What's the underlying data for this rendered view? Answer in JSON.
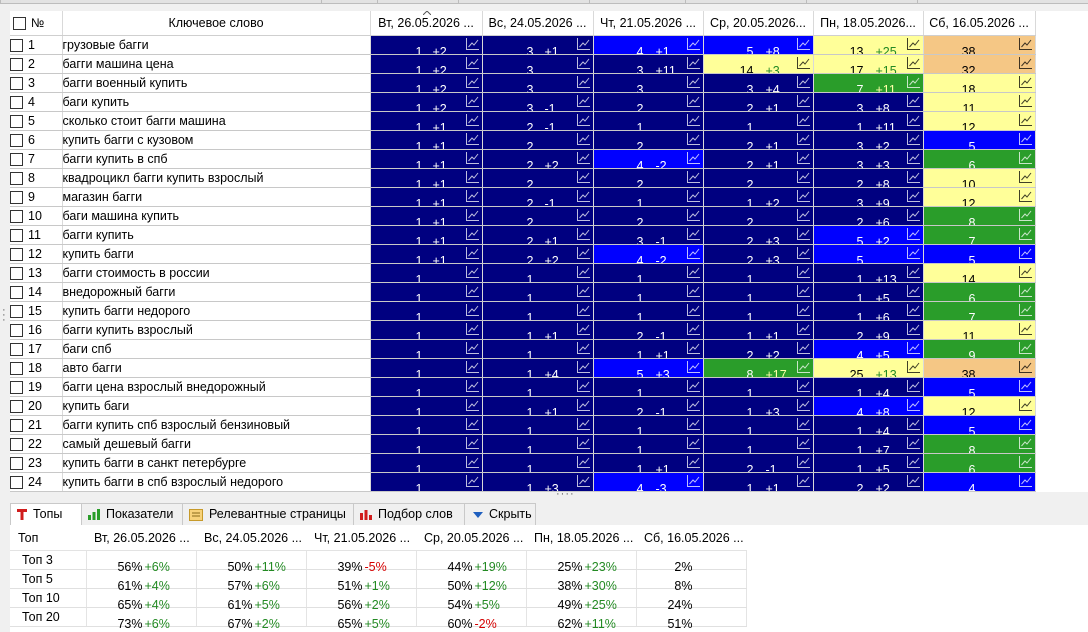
{
  "grid": {
    "headers": {
      "no": "№",
      "keyword": "Ключевое слово",
      "dates": [
        "Вт, 26.05.2026 ...",
        "Вс, 24.05.2026 ...",
        "Чт, 21.05.2026 ...",
        "Ср, 20.05.2026...",
        "Пн, 18.05.2026...",
        "Сб, 16.05.2026 ..."
      ]
    },
    "rows": [
      {
        "n": "1",
        "kw": "грузовые багги",
        "cells": [
          {
            "v": "1",
            "d": "+2",
            "c": "navy"
          },
          {
            "v": "3",
            "d": "+1",
            "c": "navy"
          },
          {
            "v": "4",
            "d": "+1",
            "c": "blue"
          },
          {
            "v": "5",
            "d": "+8",
            "c": "blue"
          },
          {
            "v": "13",
            "d": "+25",
            "c": "yellow"
          },
          {
            "v": "38",
            "d": "",
            "c": "orange"
          }
        ]
      },
      {
        "n": "2",
        "kw": "багги машина цена",
        "cells": [
          {
            "v": "1",
            "d": "+2",
            "c": "navy"
          },
          {
            "v": "3",
            "d": "",
            "c": "navy"
          },
          {
            "v": "3",
            "d": "+11",
            "c": "navy"
          },
          {
            "v": "14",
            "d": "+3",
            "c": "yellow"
          },
          {
            "v": "17",
            "d": "+15",
            "c": "yellow"
          },
          {
            "v": "32",
            "d": "",
            "c": "orange"
          }
        ]
      },
      {
        "n": "3",
        "kw": "багги военный купить",
        "cells": [
          {
            "v": "1",
            "d": "+2",
            "c": "navy"
          },
          {
            "v": "3",
            "d": "",
            "c": "navy"
          },
          {
            "v": "3",
            "d": "",
            "c": "navy"
          },
          {
            "v": "3",
            "d": "+4",
            "c": "navy"
          },
          {
            "v": "7",
            "d": "+11",
            "c": "green"
          },
          {
            "v": "18",
            "d": "",
            "c": "yellow"
          }
        ]
      },
      {
        "n": "4",
        "kw": "баги купить",
        "cells": [
          {
            "v": "1",
            "d": "+2",
            "c": "navy"
          },
          {
            "v": "3",
            "d": "-1",
            "c": "navy"
          },
          {
            "v": "2",
            "d": "",
            "c": "navy"
          },
          {
            "v": "2",
            "d": "+1",
            "c": "navy"
          },
          {
            "v": "3",
            "d": "+8",
            "c": "navy"
          },
          {
            "v": "11",
            "d": "",
            "c": "yellow"
          }
        ]
      },
      {
        "n": "5",
        "kw": "сколько стоит багги машина",
        "cells": [
          {
            "v": "1",
            "d": "+1",
            "c": "navy"
          },
          {
            "v": "2",
            "d": "-1",
            "c": "navy"
          },
          {
            "v": "1",
            "d": "",
            "c": "navy"
          },
          {
            "v": "1",
            "d": "",
            "c": "navy"
          },
          {
            "v": "1",
            "d": "+11",
            "c": "navy"
          },
          {
            "v": "12",
            "d": "",
            "c": "yellow"
          }
        ]
      },
      {
        "n": "6",
        "kw": "купить багги с кузовом",
        "cells": [
          {
            "v": "1",
            "d": "+1",
            "c": "navy"
          },
          {
            "v": "2",
            "d": "",
            "c": "navy"
          },
          {
            "v": "2",
            "d": "",
            "c": "navy"
          },
          {
            "v": "2",
            "d": "+1",
            "c": "navy"
          },
          {
            "v": "3",
            "d": "+2",
            "c": "navy"
          },
          {
            "v": "5",
            "d": "",
            "c": "blue"
          }
        ]
      },
      {
        "n": "7",
        "kw": "багги купить в спб",
        "cells": [
          {
            "v": "1",
            "d": "+1",
            "c": "navy"
          },
          {
            "v": "2",
            "d": "+2",
            "c": "navy"
          },
          {
            "v": "4",
            "d": "-2",
            "c": "blue"
          },
          {
            "v": "2",
            "d": "+1",
            "c": "navy"
          },
          {
            "v": "3",
            "d": "+3",
            "c": "navy"
          },
          {
            "v": "6",
            "d": "",
            "c": "green"
          }
        ]
      },
      {
        "n": "8",
        "kw": "квадроцикл багги купить взрослый",
        "cells": [
          {
            "v": "1",
            "d": "+1",
            "c": "navy"
          },
          {
            "v": "2",
            "d": "",
            "c": "navy"
          },
          {
            "v": "2",
            "d": "",
            "c": "navy"
          },
          {
            "v": "2",
            "d": "",
            "c": "navy"
          },
          {
            "v": "2",
            "d": "+8",
            "c": "navy"
          },
          {
            "v": "10",
            "d": "",
            "c": "yellow"
          }
        ]
      },
      {
        "n": "9",
        "kw": "магазин багги",
        "cells": [
          {
            "v": "1",
            "d": "+1",
            "c": "navy"
          },
          {
            "v": "2",
            "d": "-1",
            "c": "navy"
          },
          {
            "v": "1",
            "d": "",
            "c": "navy"
          },
          {
            "v": "1",
            "d": "+2",
            "c": "navy"
          },
          {
            "v": "3",
            "d": "+9",
            "c": "navy"
          },
          {
            "v": "12",
            "d": "",
            "c": "yellow"
          }
        ]
      },
      {
        "n": "10",
        "kw": "баги машина купить",
        "cells": [
          {
            "v": "1",
            "d": "+1",
            "c": "navy"
          },
          {
            "v": "2",
            "d": "",
            "c": "navy"
          },
          {
            "v": "2",
            "d": "",
            "c": "navy"
          },
          {
            "v": "2",
            "d": "",
            "c": "navy"
          },
          {
            "v": "2",
            "d": "+6",
            "c": "navy"
          },
          {
            "v": "8",
            "d": "",
            "c": "green"
          }
        ]
      },
      {
        "n": "11",
        "kw": "багги купить",
        "cells": [
          {
            "v": "1",
            "d": "+1",
            "c": "navy"
          },
          {
            "v": "2",
            "d": "+1",
            "c": "navy"
          },
          {
            "v": "3",
            "d": "-1",
            "c": "navy"
          },
          {
            "v": "2",
            "d": "+3",
            "c": "navy"
          },
          {
            "v": "5",
            "d": "+2",
            "c": "blue"
          },
          {
            "v": "7",
            "d": "",
            "c": "green"
          }
        ]
      },
      {
        "n": "12",
        "kw": "купить багги",
        "cells": [
          {
            "v": "1",
            "d": "+1",
            "c": "navy"
          },
          {
            "v": "2",
            "d": "+2",
            "c": "navy"
          },
          {
            "v": "4",
            "d": "-2",
            "c": "blue"
          },
          {
            "v": "2",
            "d": "+3",
            "c": "navy"
          },
          {
            "v": "5",
            "d": "",
            "c": "blue"
          },
          {
            "v": "5",
            "d": "",
            "c": "blue"
          }
        ]
      },
      {
        "n": "13",
        "kw": "багги стоимость в россии",
        "cells": [
          {
            "v": "1",
            "d": "",
            "c": "navy"
          },
          {
            "v": "1",
            "d": "",
            "c": "navy"
          },
          {
            "v": "1",
            "d": "",
            "c": "navy"
          },
          {
            "v": "1",
            "d": "",
            "c": "navy"
          },
          {
            "v": "1",
            "d": "+13",
            "c": "navy"
          },
          {
            "v": "14",
            "d": "",
            "c": "yellow"
          }
        ]
      },
      {
        "n": "14",
        "kw": "внедорожный багги",
        "cells": [
          {
            "v": "1",
            "d": "",
            "c": "navy"
          },
          {
            "v": "1",
            "d": "",
            "c": "navy"
          },
          {
            "v": "1",
            "d": "",
            "c": "navy"
          },
          {
            "v": "1",
            "d": "",
            "c": "navy"
          },
          {
            "v": "1",
            "d": "+5",
            "c": "navy"
          },
          {
            "v": "6",
            "d": "",
            "c": "green"
          }
        ]
      },
      {
        "n": "15",
        "kw": "купить багги недорого",
        "cells": [
          {
            "v": "1",
            "d": "",
            "c": "navy"
          },
          {
            "v": "1",
            "d": "",
            "c": "navy"
          },
          {
            "v": "1",
            "d": "",
            "c": "navy"
          },
          {
            "v": "1",
            "d": "",
            "c": "navy"
          },
          {
            "v": "1",
            "d": "+6",
            "c": "navy"
          },
          {
            "v": "7",
            "d": "",
            "c": "green"
          }
        ]
      },
      {
        "n": "16",
        "kw": "багги купить взрослый",
        "cells": [
          {
            "v": "1",
            "d": "",
            "c": "navy"
          },
          {
            "v": "1",
            "d": "+1",
            "c": "navy"
          },
          {
            "v": "2",
            "d": "-1",
            "c": "navy"
          },
          {
            "v": "1",
            "d": "+1",
            "c": "navy"
          },
          {
            "v": "2",
            "d": "+9",
            "c": "navy"
          },
          {
            "v": "11",
            "d": "",
            "c": "yellow"
          }
        ]
      },
      {
        "n": "17",
        "kw": "баги спб",
        "cells": [
          {
            "v": "1",
            "d": "",
            "c": "navy"
          },
          {
            "v": "1",
            "d": "",
            "c": "navy"
          },
          {
            "v": "1",
            "d": "+1",
            "c": "navy"
          },
          {
            "v": "2",
            "d": "+2",
            "c": "navy"
          },
          {
            "v": "4",
            "d": "+5",
            "c": "blue"
          },
          {
            "v": "9",
            "d": "",
            "c": "green"
          }
        ]
      },
      {
        "n": "18",
        "kw": "авто багги",
        "cells": [
          {
            "v": "1",
            "d": "",
            "c": "navy"
          },
          {
            "v": "1",
            "d": "+4",
            "c": "navy"
          },
          {
            "v": "5",
            "d": "+3",
            "c": "blue"
          },
          {
            "v": "8",
            "d": "+17",
            "c": "green"
          },
          {
            "v": "25",
            "d": "+13",
            "c": "yellow"
          },
          {
            "v": "38",
            "d": "",
            "c": "orange"
          }
        ]
      },
      {
        "n": "19",
        "kw": "багги цена взрослый внедорожный",
        "cells": [
          {
            "v": "1",
            "d": "",
            "c": "navy"
          },
          {
            "v": "1",
            "d": "",
            "c": "navy"
          },
          {
            "v": "1",
            "d": "",
            "c": "navy"
          },
          {
            "v": "1",
            "d": "",
            "c": "navy"
          },
          {
            "v": "1",
            "d": "+4",
            "c": "navy"
          },
          {
            "v": "5",
            "d": "",
            "c": "blue"
          }
        ]
      },
      {
        "n": "20",
        "kw": "купить баги",
        "cells": [
          {
            "v": "1",
            "d": "",
            "c": "navy"
          },
          {
            "v": "1",
            "d": "+1",
            "c": "navy"
          },
          {
            "v": "2",
            "d": "-1",
            "c": "navy"
          },
          {
            "v": "1",
            "d": "+3",
            "c": "navy"
          },
          {
            "v": "4",
            "d": "+8",
            "c": "blue"
          },
          {
            "v": "12",
            "d": "",
            "c": "yellow"
          }
        ]
      },
      {
        "n": "21",
        "kw": "багги купить спб взрослый бензиновый",
        "cells": [
          {
            "v": "1",
            "d": "",
            "c": "navy"
          },
          {
            "v": "1",
            "d": "",
            "c": "navy"
          },
          {
            "v": "1",
            "d": "",
            "c": "navy"
          },
          {
            "v": "1",
            "d": "",
            "c": "navy"
          },
          {
            "v": "1",
            "d": "+4",
            "c": "navy"
          },
          {
            "v": "5",
            "d": "",
            "c": "blue"
          }
        ]
      },
      {
        "n": "22",
        "kw": "самый дешевый багги",
        "cells": [
          {
            "v": "1",
            "d": "",
            "c": "navy"
          },
          {
            "v": "1",
            "d": "",
            "c": "navy"
          },
          {
            "v": "1",
            "d": "",
            "c": "navy"
          },
          {
            "v": "1",
            "d": "",
            "c": "navy"
          },
          {
            "v": "1",
            "d": "+7",
            "c": "navy"
          },
          {
            "v": "8",
            "d": "",
            "c": "green"
          }
        ]
      },
      {
        "n": "23",
        "kw": "купить багги в санкт петербурге",
        "cells": [
          {
            "v": "1",
            "d": "",
            "c": "navy"
          },
          {
            "v": "1",
            "d": "",
            "c": "navy"
          },
          {
            "v": "1",
            "d": "+1",
            "c": "navy"
          },
          {
            "v": "2",
            "d": "-1",
            "c": "navy"
          },
          {
            "v": "1",
            "d": "+5",
            "c": "navy"
          },
          {
            "v": "6",
            "d": "",
            "c": "green"
          }
        ]
      },
      {
        "n": "24",
        "kw": "купить багги в спб взрослый недорого",
        "cells": [
          {
            "v": "1",
            "d": "",
            "c": "navy"
          },
          {
            "v": "1",
            "d": "+3",
            "c": "navy"
          },
          {
            "v": "4",
            "d": "-3",
            "c": "blue"
          },
          {
            "v": "1",
            "d": "+1",
            "c": "navy"
          },
          {
            "v": "2",
            "d": "+2",
            "c": "navy"
          },
          {
            "v": "4",
            "d": "",
            "c": "blue"
          }
        ]
      }
    ]
  },
  "tabs": [
    {
      "label": "Топы",
      "icon": "tops-t-icon",
      "active": true
    },
    {
      "label": "Показатели",
      "icon": "bar-chart-icon",
      "active": false
    },
    {
      "label": "Релевантные страницы",
      "icon": "pages-icon",
      "active": false
    },
    {
      "label": "Подбор слов",
      "icon": "word-bars-icon",
      "active": false
    },
    {
      "label": "Скрыть",
      "icon": "hide-arrow-icon",
      "active": false
    }
  ],
  "tops": {
    "label_header": "Топ",
    "dates": [
      "Вт, 26.05.2026 ...",
      "Вс, 24.05.2026 ...",
      "Чт, 21.05.2026 ...",
      "Ср, 20.05.2026 ...",
      "Пн, 18.05.2026 ...",
      "Сб, 16.05.2026 ..."
    ],
    "rows": [
      {
        "label": "Топ 3",
        "cells": [
          {
            "v": "56%",
            "d": "+6%"
          },
          {
            "v": "50%",
            "d": "+11%"
          },
          {
            "v": "39%",
            "d": "-5%"
          },
          {
            "v": "44%",
            "d": "+19%"
          },
          {
            "v": "25%",
            "d": "+23%"
          },
          {
            "v": "2%",
            "d": ""
          }
        ]
      },
      {
        "label": "Топ 5",
        "cells": [
          {
            "v": "61%",
            "d": "+4%"
          },
          {
            "v": "57%",
            "d": "+6%"
          },
          {
            "v": "51%",
            "d": "+1%"
          },
          {
            "v": "50%",
            "d": "+12%"
          },
          {
            "v": "38%",
            "d": "+30%"
          },
          {
            "v": "8%",
            "d": ""
          }
        ]
      },
      {
        "label": "Топ 10",
        "cells": [
          {
            "v": "65%",
            "d": "+4%"
          },
          {
            "v": "61%",
            "d": "+5%"
          },
          {
            "v": "56%",
            "d": "+2%"
          },
          {
            "v": "54%",
            "d": "+5%"
          },
          {
            "v": "49%",
            "d": "+25%"
          },
          {
            "v": "24%",
            "d": ""
          }
        ]
      },
      {
        "label": "Топ 20",
        "cells": [
          {
            "v": "73%",
            "d": "+6%"
          },
          {
            "v": "67%",
            "d": "+2%"
          },
          {
            "v": "65%",
            "d": "+5%"
          },
          {
            "v": "60%",
            "d": "-2%"
          },
          {
            "v": "62%",
            "d": "+11%"
          },
          {
            "v": "51%",
            "d": ""
          }
        ]
      }
    ]
  },
  "icons": {
    "sort": "sort-asc-icon",
    "row_chart": "line-chart-icon",
    "checkbox": "checkbox-icon"
  }
}
